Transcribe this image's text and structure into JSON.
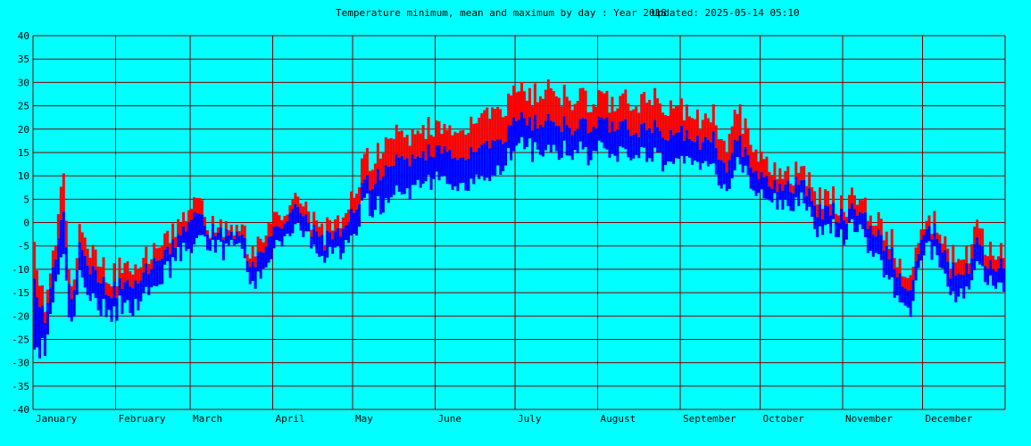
{
  "chart_data": {
    "type": "bar",
    "title": "Temperature minimum, mean and maximum by day : Year 2018",
    "updated": "Updated: 2025-05-14 05:10",
    "xlabel": "",
    "ylabel": "",
    "ylim": [
      -40,
      40
    ],
    "yticks": [
      40,
      35,
      30,
      25,
      20,
      15,
      10,
      5,
      0,
      -5,
      -10,
      -15,
      -20,
      -25,
      -30,
      -35,
      -40
    ],
    "months": [
      "January",
      "February",
      "March",
      "April",
      "May",
      "June",
      "July",
      "August",
      "September",
      "October",
      "November",
      "December"
    ],
    "month_days": [
      31,
      28,
      31,
      30,
      31,
      30,
      31,
      31,
      30,
      31,
      30,
      31
    ],
    "grid": true,
    "colors": {
      "background": "#00ffff",
      "grid": "#800000",
      "max": "#ff0000",
      "mean": "#0000ff",
      "min": "#0000ff"
    },
    "series": [
      {
        "name": "max",
        "color": "#ff0000",
        "keypoints": [
          [
            1,
            -7
          ],
          [
            5,
            -17
          ],
          [
            9,
            -5
          ],
          [
            12,
            10
          ],
          [
            15,
            -16
          ],
          [
            18,
            0
          ],
          [
            22,
            -6
          ],
          [
            26,
            -8
          ],
          [
            30,
            -12
          ],
          [
            35,
            -9
          ],
          [
            40,
            -10
          ],
          [
            45,
            -5
          ],
          [
            50,
            -4
          ],
          [
            55,
            0
          ],
          [
            60,
            5
          ],
          [
            63,
            4
          ],
          [
            67,
            -1
          ],
          [
            72,
            -2
          ],
          [
            78,
            -2
          ],
          [
            83,
            -6
          ],
          [
            88,
            -4
          ],
          [
            93,
            3
          ],
          [
            97,
            5
          ],
          [
            100,
            5
          ],
          [
            105,
            0
          ],
          [
            110,
            -2
          ],
          [
            115,
            -1
          ],
          [
            120,
            4
          ],
          [
            125,
            13
          ],
          [
            130,
            15
          ],
          [
            135,
            18
          ],
          [
            140,
            19
          ],
          [
            145,
            18
          ],
          [
            150,
            20
          ],
          [
            155,
            22
          ],
          [
            160,
            20
          ],
          [
            165,
            21
          ],
          [
            170,
            24
          ],
          [
            175,
            25
          ],
          [
            180,
            26
          ],
          [
            185,
            29
          ],
          [
            190,
            27
          ],
          [
            195,
            29
          ],
          [
            200,
            27
          ],
          [
            205,
            26
          ],
          [
            210,
            26
          ],
          [
            215,
            26
          ],
          [
            220,
            26
          ],
          [
            225,
            26
          ],
          [
            230,
            26
          ],
          [
            235,
            26
          ],
          [
            240,
            25
          ],
          [
            245,
            24
          ],
          [
            250,
            22
          ],
          [
            255,
            24
          ],
          [
            258,
            20
          ],
          [
            262,
            17
          ],
          [
            265,
            24
          ],
          [
            270,
            17
          ],
          [
            275,
            14
          ],
          [
            280,
            10
          ],
          [
            285,
            9
          ],
          [
            290,
            12
          ],
          [
            295,
            5
          ],
          [
            300,
            6
          ],
          [
            305,
            3
          ],
          [
            310,
            6
          ],
          [
            315,
            1
          ],
          [
            318,
            0
          ],
          [
            322,
            -3
          ],
          [
            326,
            -8
          ],
          [
            330,
            -12
          ],
          [
            335,
            1
          ],
          [
            340,
            0
          ],
          [
            345,
            -7
          ],
          [
            350,
            -9
          ],
          [
            355,
            -2
          ],
          [
            360,
            -7
          ],
          [
            365,
            -5
          ]
        ]
      },
      {
        "name": "mean",
        "color": "#0000ff",
        "keypoints": [
          [
            1,
            -14
          ],
          [
            5,
            -20
          ],
          [
            9,
            -8
          ],
          [
            12,
            2
          ],
          [
            15,
            -18
          ],
          [
            18,
            -4
          ],
          [
            22,
            -10
          ],
          [
            26,
            -12
          ],
          [
            30,
            -15
          ],
          [
            35,
            -13
          ],
          [
            40,
            -13
          ],
          [
            45,
            -8
          ],
          [
            50,
            -7
          ],
          [
            55,
            -3
          ],
          [
            60,
            2
          ],
          [
            63,
            1
          ],
          [
            67,
            -2
          ],
          [
            72,
            -3
          ],
          [
            78,
            -3
          ],
          [
            83,
            -9
          ],
          [
            88,
            -6
          ],
          [
            93,
            0
          ],
          [
            97,
            3
          ],
          [
            100,
            3
          ],
          [
            105,
            -2
          ],
          [
            110,
            -4
          ],
          [
            115,
            -3
          ],
          [
            120,
            1
          ],
          [
            125,
            8
          ],
          [
            130,
            10
          ],
          [
            135,
            12
          ],
          [
            140,
            14
          ],
          [
            145,
            13
          ],
          [
            150,
            15
          ],
          [
            155,
            17
          ],
          [
            160,
            14
          ],
          [
            165,
            15
          ],
          [
            170,
            17
          ],
          [
            175,
            18
          ],
          [
            180,
            20
          ],
          [
            185,
            23
          ],
          [
            190,
            21
          ],
          [
            195,
            22
          ],
          [
            200,
            21
          ],
          [
            205,
            20
          ],
          [
            210,
            21
          ],
          [
            215,
            21
          ],
          [
            220,
            21
          ],
          [
            225,
            20
          ],
          [
            230,
            20
          ],
          [
            235,
            20
          ],
          [
            240,
            19
          ],
          [
            245,
            19
          ],
          [
            250,
            17
          ],
          [
            255,
            19
          ],
          [
            258,
            15
          ],
          [
            262,
            12
          ],
          [
            265,
            18
          ],
          [
            270,
            12
          ],
          [
            275,
            10
          ],
          [
            280,
            7
          ],
          [
            285,
            7
          ],
          [
            290,
            9
          ],
          [
            295,
            2
          ],
          [
            300,
            3
          ],
          [
            305,
            1
          ],
          [
            310,
            3
          ],
          [
            315,
            -1
          ],
          [
            318,
            -3
          ],
          [
            322,
            -6
          ],
          [
            326,
            -11
          ],
          [
            330,
            -15
          ],
          [
            335,
            -1
          ],
          [
            340,
            -2
          ],
          [
            345,
            -10
          ],
          [
            350,
            -12
          ],
          [
            355,
            -5
          ],
          [
            360,
            -10
          ],
          [
            365,
            -8
          ]
        ]
      },
      {
        "name": "min",
        "color": "#0000ff",
        "keypoints": [
          [
            1,
            -28
          ],
          [
            5,
            -26
          ],
          [
            9,
            -14
          ],
          [
            12,
            -6
          ],
          [
            15,
            -24
          ],
          [
            18,
            -10
          ],
          [
            22,
            -16
          ],
          [
            26,
            -18
          ],
          [
            30,
            -19
          ],
          [
            35,
            -18
          ],
          [
            40,
            -18
          ],
          [
            45,
            -13
          ],
          [
            50,
            -11
          ],
          [
            55,
            -7
          ],
          [
            60,
            -4
          ],
          [
            63,
            -3
          ],
          [
            67,
            -4
          ],
          [
            72,
            -6
          ],
          [
            78,
            -5
          ],
          [
            83,
            -14
          ],
          [
            88,
            -10
          ],
          [
            93,
            -4
          ],
          [
            97,
            -1
          ],
          [
            100,
            -1
          ],
          [
            105,
            -5
          ],
          [
            110,
            -8
          ],
          [
            115,
            -7
          ],
          [
            120,
            -3
          ],
          [
            125,
            3
          ],
          [
            130,
            4
          ],
          [
            135,
            5
          ],
          [
            140,
            7
          ],
          [
            145,
            7
          ],
          [
            150,
            9
          ],
          [
            155,
            11
          ],
          [
            160,
            8
          ],
          [
            165,
            9
          ],
          [
            170,
            10
          ],
          [
            175,
            11
          ],
          [
            180,
            14
          ],
          [
            185,
            17
          ],
          [
            190,
            15
          ],
          [
            195,
            16
          ],
          [
            200,
            15
          ],
          [
            205,
            15
          ],
          [
            210,
            15
          ],
          [
            215,
            15
          ],
          [
            220,
            15
          ],
          [
            225,
            14
          ],
          [
            230,
            14
          ],
          [
            235,
            14
          ],
          [
            240,
            13
          ],
          [
            245,
            14
          ],
          [
            250,
            12
          ],
          [
            255,
            14
          ],
          [
            258,
            9
          ],
          [
            262,
            7
          ],
          [
            265,
            13
          ],
          [
            270,
            7
          ],
          [
            275,
            6
          ],
          [
            280,
            3
          ],
          [
            285,
            3
          ],
          [
            290,
            5
          ],
          [
            295,
            -2
          ],
          [
            300,
            -1
          ],
          [
            305,
            -3
          ],
          [
            310,
            -1
          ],
          [
            315,
            -5
          ],
          [
            318,
            -8
          ],
          [
            322,
            -12
          ],
          [
            326,
            -16
          ],
          [
            330,
            -20
          ],
          [
            335,
            -5
          ],
          [
            340,
            -6
          ],
          [
            345,
            -15
          ],
          [
            350,
            -16
          ],
          [
            355,
            -10
          ],
          [
            360,
            -14
          ],
          [
            365,
            -13
          ]
        ]
      }
    ]
  }
}
